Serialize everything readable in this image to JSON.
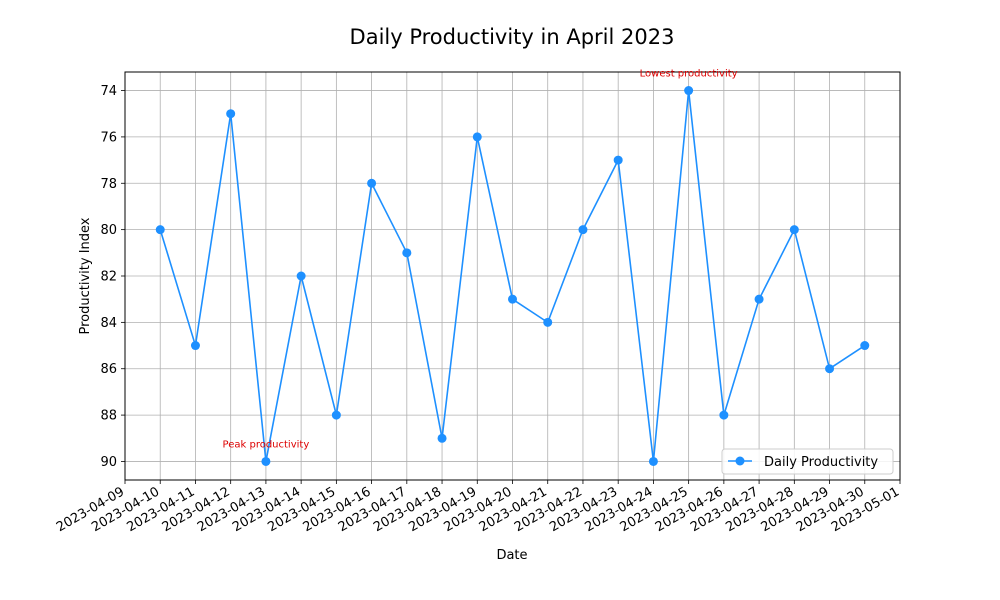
{
  "chart_data": {
    "type": "line",
    "title": "Daily Productivity in April 2023",
    "xlabel": "Date",
    "ylabel": "Productivity Index",
    "y_inverted": true,
    "ylim": [
      90.8,
      73.2
    ],
    "y_ticks": [
      74,
      76,
      78,
      80,
      82,
      84,
      86,
      88,
      90
    ],
    "x_ticks": [
      "2023-04-09",
      "2023-04-10",
      "2023-04-11",
      "2023-04-12",
      "2023-04-13",
      "2023-04-14",
      "2023-04-15",
      "2023-04-16",
      "2023-04-17",
      "2023-04-18",
      "2023-04-19",
      "2023-04-20",
      "2023-04-21",
      "2023-04-22",
      "2023-04-23",
      "2023-04-24",
      "2023-04-25",
      "2023-04-26",
      "2023-04-27",
      "2023-04-28",
      "2023-04-29",
      "2023-04-30",
      "2023-05-01"
    ],
    "grid": true,
    "legend_position": "lower-right",
    "series": [
      {
        "name": "Daily Productivity",
        "color": "#1e90ff",
        "marker": "circle",
        "x": [
          "2023-04-10",
          "2023-04-11",
          "2023-04-12",
          "2023-04-13",
          "2023-04-14",
          "2023-04-15",
          "2023-04-16",
          "2023-04-17",
          "2023-04-18",
          "2023-04-19",
          "2023-04-20",
          "2023-04-21",
          "2023-04-22",
          "2023-04-23",
          "2023-04-24",
          "2023-04-25",
          "2023-04-26",
          "2023-04-27",
          "2023-04-28",
          "2023-04-29",
          "2023-04-30"
        ],
        "values": [
          80,
          85,
          75,
          90,
          82,
          88,
          78,
          81,
          89,
          76,
          83,
          84,
          80,
          77,
          90,
          74,
          88,
          83,
          80,
          86,
          85
        ]
      }
    ],
    "annotations": [
      {
        "text": "Peak productivity",
        "x": "2023-04-13",
        "y": 90,
        "color": "#dd0000"
      },
      {
        "text": "Lowest productivity",
        "x": "2023-04-25",
        "y": 74,
        "color": "#dd0000"
      }
    ]
  }
}
